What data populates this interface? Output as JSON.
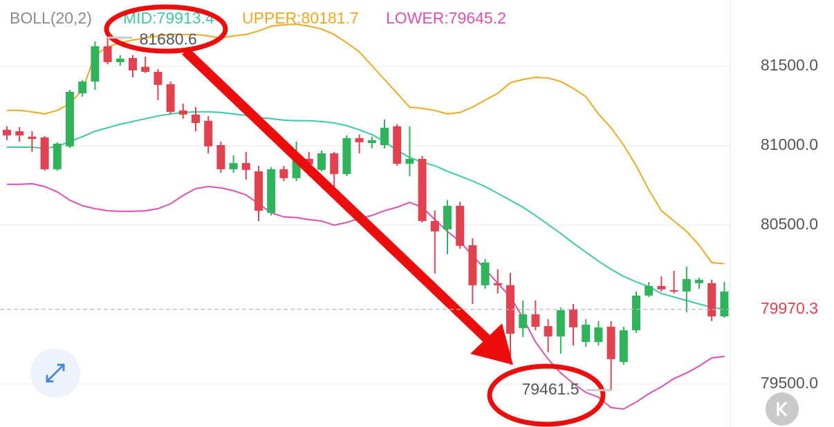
{
  "chart_data": {
    "type": "candlestick",
    "indicator": "BOLL(20,2)",
    "up_color": "#2fb35b",
    "down_color": "#e2424f",
    "ylim": [
      79230,
      81917
    ],
    "yticks": [
      {
        "value": 79500,
        "label": "79500.0"
      },
      {
        "value": 80500,
        "label": "80500.0"
      },
      {
        "value": 81000,
        "label": "81000.0"
      },
      {
        "value": 81500,
        "label": "81500.0"
      }
    ],
    "grid": true,
    "last_price": 79970.3,
    "open": [
      81100,
      81091,
      81057,
      81052,
      80852,
      80996,
      81330,
      81404,
      81626,
      81526,
      81552,
      81496,
      81465,
      81387,
      81222,
      81196,
      81157,
      81004,
      80852,
      80891,
      80839,
      80578,
      80852,
      80796,
      80917,
      80848,
      80952,
      80822,
      81048,
      81017,
      81004,
      81122,
      80887,
      80917,
      80526,
      80474,
      80622,
      80374,
      80122,
      80135,
      80122,
      79852,
      79939,
      79865,
      79800,
      79970,
      79765,
      79765,
      79861,
      79639,
      79839,
      80057,
      80117,
      80091,
      80083,
      80135,
      80135,
      79926
    ],
    "high": [
      81122,
      81117,
      81091,
      81061,
      81022,
      81352,
      81413,
      81657,
      81680.6,
      81570,
      81570,
      81561,
      81483,
      81404,
      81265,
      81243,
      81187,
      81026,
      80939,
      80961,
      80874,
      80865,
      80874,
      81026,
      80961,
      80970,
      80961,
      81065,
      81070,
      81057,
      81165,
      81135,
      81122,
      80935,
      80591,
      80657,
      80648,
      80417,
      80287,
      80222,
      80200,
      80026,
      80026,
      79909,
      79983,
      80004,
      79909,
      79896,
      79896,
      79861,
      80083,
      80143,
      80178,
      80213,
      80239,
      80170,
      80157,
      80143
    ],
    "low": [
      81035,
      81026,
      80961,
      80843,
      80843,
      80987,
      81309,
      81352,
      81513,
      81504,
      81430,
      81457,
      81287,
      81200,
      81170,
      81091,
      80952,
      80830,
      80830,
      80787,
      80526,
      80561,
      80778,
      80778,
      80809,
      80839,
      80743,
      80809,
      80952,
      80983,
      80983,
      80874,
      80809,
      80517,
      80196,
      80317,
      80352,
      80004,
      80100,
      80070,
      79622,
      79796,
      79839,
      79700,
      79691,
      79743,
      79735,
      79743,
      79461.5,
      79622,
      79822,
      80048,
      80083,
      80070,
      79952,
      80100,
      79896,
      79917
    ],
    "close": [
      81065,
      81065,
      81043,
      80852,
      81013,
      81339,
      81404,
      81626,
      81526,
      81548,
      81474,
      81465,
      81383,
      81213,
      81196,
      81143,
      80996,
      80852,
      80891,
      80848,
      80591,
      80852,
      80796,
      80917,
      80883,
      80952,
      80822,
      81048,
      81022,
      81035,
      81113,
      80887,
      80917,
      80526,
      80461,
      80622,
      80370,
      80122,
      80265,
      80122,
      79817,
      79939,
      79861,
      79800,
      79965,
      79857,
      79874,
      79857,
      79657,
      79839,
      80057,
      80117,
      80096,
      80087,
      80161,
      80157,
      79926,
      80083
    ],
    "bands": [
      {
        "name": "MID:79913.4",
        "color": "#3cc9a4",
        "values": [
          80991,
          80991,
          80991,
          80983,
          80996,
          81026,
          81057,
          81091,
          81113,
          81135,
          81152,
          81170,
          81187,
          81200,
          81209,
          81213,
          81213,
          81209,
          81200,
          81191,
          81178,
          81170,
          81161,
          81157,
          81157,
          81152,
          81143,
          81126,
          81100,
          81070,
          81026,
          80970,
          80926,
          80896,
          80874,
          80839,
          80809,
          80778,
          80743,
          80700,
          80657,
          80613,
          80561,
          80504,
          80448,
          80387,
          80330,
          80274,
          80222,
          80178,
          80143,
          80113,
          80070,
          80048,
          80026,
          80004,
          79983,
          79970
        ]
      },
      {
        "name": "UPPER:80181.7",
        "color": "#f0a81c",
        "values": [
          81222,
          81222,
          81213,
          81200,
          81222,
          81265,
          81352,
          81570,
          81622,
          81648,
          81665,
          81678,
          81691,
          81700,
          81700,
          81700,
          81691,
          81678,
          81691,
          81700,
          81722,
          81752,
          81761,
          81765,
          81752,
          81735,
          81700,
          81648,
          81591,
          81504,
          81417,
          81330,
          81243,
          81235,
          81222,
          81200,
          81209,
          81243,
          81287,
          81330,
          81396,
          81417,
          81430,
          81426,
          81404,
          81361,
          81309,
          81200,
          81113,
          81004,
          80874,
          80722,
          80591,
          80526,
          80461,
          80374,
          80265,
          80257
        ]
      },
      {
        "name": "LOWER:79645.2",
        "color": "#de4fb4",
        "values": [
          80757,
          80757,
          80761,
          80743,
          80709,
          80657,
          80622,
          80604,
          80591,
          80587,
          80587,
          80591,
          80604,
          80635,
          80687,
          80730,
          80743,
          80735,
          80717,
          80691,
          80635,
          80578,
          80552,
          80548,
          80535,
          80526,
          80500,
          80517,
          80543,
          80561,
          80591,
          80613,
          80643,
          80613,
          80535,
          80461,
          80396,
          80309,
          80222,
          80135,
          80048,
          79917,
          79765,
          79657,
          79570,
          79504,
          79448,
          79417,
          79352,
          79343,
          79387,
          79439,
          79483,
          79535,
          79570,
          79613,
          79665,
          79674
        ]
      }
    ]
  }
}
